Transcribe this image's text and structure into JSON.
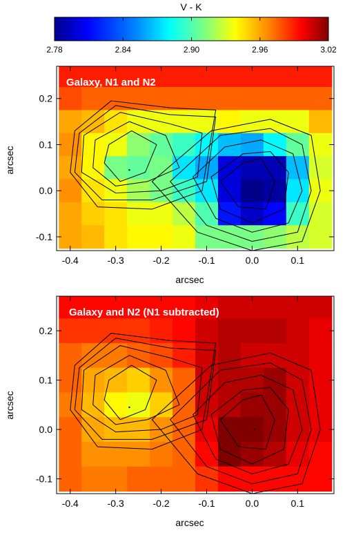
{
  "colorbar": {
    "title": "V - K",
    "ticks": [
      "2.78",
      "2.84",
      "2.90",
      "2.96",
      "3.02"
    ],
    "tick_values": [
      2.78,
      2.84,
      2.9,
      2.96,
      3.02
    ],
    "range": [
      2.78,
      3.02
    ]
  },
  "chart_data": [
    {
      "type": "heatmap",
      "title": "Galaxy, N1 and N2",
      "xlabel": "arcsec",
      "ylabel": "arcsec",
      "xlim": [
        -0.43,
        0.18
      ],
      "ylim": [
        -0.13,
        0.27
      ],
      "xticks": [
        -0.4,
        -0.3,
        -0.2,
        -0.1,
        0.0,
        0.1
      ],
      "xtick_labels": [
        "-0.4",
        "-0.3",
        "-0.2",
        "-0.1",
        "0.0",
        "0.1"
      ],
      "yticks": [
        -0.1,
        0.0,
        0.1,
        0.2
      ],
      "ytick_labels": [
        "-0.1",
        "0.0",
        "0.1",
        "0.2"
      ],
      "pixel_size_arcsec": 0.05,
      "row_centers": [
        0.25,
        0.2,
        0.15,
        0.1,
        0.05,
        0.0,
        -0.05,
        -0.1
      ],
      "col_centers": [
        -0.4,
        -0.35,
        -0.3,
        -0.25,
        -0.2,
        -0.15,
        -0.1,
        -0.05,
        0.0,
        0.05,
        0.1,
        0.15
      ],
      "v_minus_k": [
        [
          2.99,
          2.99,
          2.99,
          2.99,
          2.99,
          2.99,
          2.99,
          2.99,
          2.99,
          2.99,
          2.99,
          2.99
        ],
        [
          2.98,
          2.975,
          2.975,
          2.975,
          2.975,
          2.975,
          2.975,
          2.975,
          2.975,
          2.975,
          2.975,
          2.975
        ],
        [
          2.96,
          2.955,
          2.945,
          2.935,
          2.935,
          2.935,
          2.935,
          2.94,
          2.935,
          2.935,
          2.935,
          2.955
        ],
        [
          2.965,
          2.94,
          2.935,
          2.915,
          2.905,
          2.895,
          2.88,
          2.865,
          2.86,
          2.88,
          2.905,
          2.935
        ],
        [
          2.96,
          2.94,
          2.91,
          2.905,
          2.91,
          2.875,
          2.86,
          2.8,
          2.79,
          2.79,
          2.865,
          2.93
        ],
        [
          2.965,
          2.945,
          2.935,
          2.92,
          2.91,
          2.895,
          2.875,
          2.8,
          2.78,
          2.785,
          2.875,
          2.935
        ],
        [
          2.96,
          2.95,
          2.945,
          2.935,
          2.935,
          2.925,
          2.9,
          2.815,
          2.795,
          2.81,
          2.895,
          2.93
        ],
        [
          2.96,
          2.955,
          2.945,
          2.94,
          2.94,
          2.935,
          2.91,
          2.91,
          2.91,
          2.915,
          2.925,
          2.93
        ]
      ]
    },
    {
      "type": "heatmap",
      "title": "Galaxy and N2 (N1 subtracted)",
      "xlabel": "arcsec",
      "ylabel": "arcsec",
      "xlim": [
        -0.43,
        0.18
      ],
      "ylim": [
        -0.13,
        0.27
      ],
      "xticks": [
        -0.4,
        -0.3,
        -0.2,
        -0.1,
        0.0,
        0.1
      ],
      "xtick_labels": [
        "-0.4",
        "-0.3",
        "-0.2",
        "-0.1",
        "0.0",
        "0.1"
      ],
      "yticks": [
        -0.1,
        0.0,
        0.1,
        0.2
      ],
      "ytick_labels": [
        "-0.1",
        "0.0",
        "0.1",
        "0.2"
      ],
      "pixel_size_arcsec": 0.05,
      "row_centers": [
        0.25,
        0.2,
        0.15,
        0.1,
        0.05,
        0.0,
        -0.05,
        -0.1
      ],
      "col_centers": [
        -0.4,
        -0.35,
        -0.3,
        -0.25,
        -0.2,
        -0.15,
        -0.1,
        -0.05,
        0.0,
        0.05,
        0.1,
        0.15
      ],
      "v_minus_k": [
        [
          2.995,
          2.995,
          2.995,
          2.995,
          2.995,
          2.995,
          3.0,
          3.005,
          3.005,
          3.005,
          3.005,
          3.005
        ],
        [
          2.985,
          2.985,
          2.985,
          2.985,
          2.99,
          2.995,
          3.005,
          3.01,
          3.01,
          3.01,
          3.005,
          3.0
        ],
        [
          2.975,
          2.97,
          2.97,
          2.975,
          2.98,
          2.99,
          3.005,
          3.01,
          3.005,
          3.005,
          3.005,
          3.0
        ],
        [
          2.975,
          2.96,
          2.955,
          2.95,
          2.965,
          2.975,
          3.005,
          3.01,
          3.01,
          3.015,
          3.005,
          3.0
        ],
        [
          2.97,
          2.955,
          2.94,
          2.935,
          2.95,
          2.975,
          3.005,
          3.01,
          3.015,
          3.015,
          3.005,
          3.0
        ],
        [
          2.975,
          2.96,
          2.955,
          2.955,
          2.965,
          2.975,
          3.0,
          3.02,
          3.02,
          3.015,
          3.005,
          3.0
        ],
        [
          2.975,
          2.965,
          2.965,
          2.965,
          2.97,
          2.975,
          2.995,
          3.02,
          3.015,
          3.01,
          3.0,
          2.995
        ],
        [
          2.975,
          2.97,
          2.97,
          2.975,
          2.975,
          2.975,
          2.985,
          2.995,
          2.995,
          2.995,
          2.995,
          2.995
        ]
      ]
    }
  ],
  "contours": {
    "center_left": [
      -0.27,
      0.045
    ],
    "center_right": [
      0.005,
      0.0
    ],
    "levels": [
      {
        "left": [
          [
            -0.315,
            0.1
          ],
          [
            -0.265,
            0.13
          ],
          [
            -0.21,
            0.1
          ],
          [
            -0.235,
            0.04
          ],
          [
            -0.29,
            0.02
          ],
          [
            -0.325,
            0.06
          ]
        ],
        "right": [
          [
            -0.07,
            0.02
          ],
          [
            -0.02,
            0.06
          ],
          [
            0.02,
            0.07
          ],
          [
            0.05,
            0.02
          ],
          [
            0.03,
            -0.04
          ],
          [
            -0.03,
            -0.035
          ]
        ]
      },
      {
        "left": [
          [
            -0.345,
            0.11
          ],
          [
            -0.27,
            0.15
          ],
          [
            -0.19,
            0.12
          ],
          [
            -0.16,
            0.05
          ],
          [
            -0.23,
            0.02
          ],
          [
            -0.3,
            0.01
          ],
          [
            -0.35,
            0.05
          ]
        ],
        "right": [
          [
            -0.09,
            0.03
          ],
          [
            -0.02,
            0.08
          ],
          [
            0.04,
            0.085
          ],
          [
            0.08,
            0.04
          ],
          [
            0.07,
            -0.04
          ],
          [
            0.0,
            -0.07
          ],
          [
            -0.07,
            -0.04
          ]
        ]
      },
      {
        "left": [
          [
            -0.37,
            0.12
          ],
          [
            -0.29,
            0.17
          ],
          [
            -0.18,
            0.145
          ],
          [
            -0.11,
            0.125
          ],
          [
            -0.12,
            0.03
          ],
          [
            -0.2,
            0.0
          ],
          [
            -0.3,
            -0.005
          ],
          [
            -0.375,
            0.04
          ]
        ],
        "right": [
          [
            -0.13,
            0.03
          ],
          [
            -0.06,
            0.095
          ],
          [
            0.02,
            0.11
          ],
          [
            0.09,
            0.08
          ],
          [
            0.11,
            0.0
          ],
          [
            0.08,
            -0.07
          ],
          [
            0.0,
            -0.09
          ],
          [
            -0.08,
            -0.06
          ]
        ]
      },
      {
        "left": [
          [
            -0.38,
            0.125
          ],
          [
            -0.3,
            0.185
          ],
          [
            -0.18,
            0.165
          ],
          [
            -0.08,
            0.16
          ],
          [
            -0.1,
            0.02
          ],
          [
            -0.22,
            -0.02
          ],
          [
            -0.33,
            -0.02
          ],
          [
            -0.39,
            0.04
          ]
        ],
        "right": [
          [
            -0.18,
            0.02
          ],
          [
            -0.07,
            0.12
          ],
          [
            0.04,
            0.135
          ],
          [
            0.11,
            0.1
          ],
          [
            0.13,
            0.0
          ],
          [
            0.1,
            -0.09
          ],
          [
            0.0,
            -0.11
          ],
          [
            -0.1,
            -0.075
          ]
        ]
      },
      {
        "left": [
          [
            -0.39,
            0.13
          ],
          [
            -0.31,
            0.195
          ],
          [
            -0.18,
            0.18
          ],
          [
            -0.08,
            0.175
          ],
          [
            -0.11,
            0.0
          ],
          [
            -0.22,
            -0.04
          ],
          [
            -0.34,
            -0.035
          ],
          [
            -0.4,
            0.04
          ]
        ],
        "right": [
          [
            -0.22,
            0.02
          ],
          [
            -0.09,
            0.13
          ],
          [
            0.04,
            0.155
          ],
          [
            0.13,
            0.12
          ],
          [
            0.15,
            0.0
          ],
          [
            0.11,
            -0.11
          ],
          [
            0.0,
            -0.13
          ],
          [
            -0.12,
            -0.09
          ]
        ]
      }
    ]
  }
}
